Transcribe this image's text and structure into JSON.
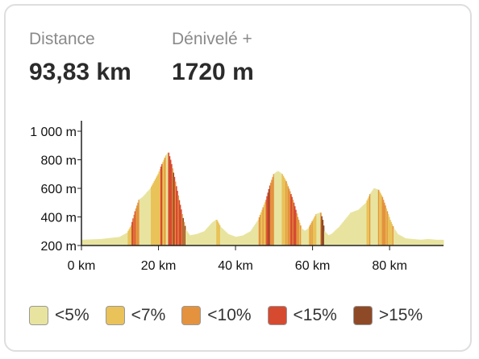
{
  "stats": {
    "distance_label": "Distance",
    "distance_value": "93,83 km",
    "elevation_label": "Dénivelé +",
    "elevation_value": "1720 m"
  },
  "colors": {
    "lt5": "#e8e4a0",
    "lt7": "#e9c259",
    "lt10": "#e4923e",
    "lt15": "#d64a30",
    "gt15": "#8e4a26",
    "axis": "#222222"
  },
  "legend": [
    {
      "label": "<5%",
      "color": "#e8e4a0"
    },
    {
      "label": "<7%",
      "color": "#e9c259"
    },
    {
      "label": "<10%",
      "color": "#e4923e"
    },
    {
      "label": "<15%",
      "color": "#d64a30"
    },
    {
      "label": ">15%",
      "color": "#8e4a26"
    }
  ],
  "chart_data": {
    "type": "area",
    "xlabel": "",
    "ylabel": "",
    "xlim": [
      0,
      94
    ],
    "ylim": [
      200,
      1000
    ],
    "x_ticks": [
      0,
      20,
      40,
      60,
      80
    ],
    "x_tick_labels": [
      "0 km",
      "20 km",
      "40 km",
      "60 km",
      "80 km"
    ],
    "y_ticks": [
      200,
      400,
      600,
      800,
      1000
    ],
    "y_tick_labels": [
      "200 m",
      "400 m",
      "600 m",
      "800 m",
      "1 000 m"
    ],
    "x": [
      0,
      5,
      10,
      12,
      13,
      14,
      15,
      16,
      17,
      18,
      19,
      20,
      21,
      22,
      22.5,
      23,
      24,
      25,
      26,
      27,
      28,
      30,
      32,
      34,
      35,
      36,
      38,
      40,
      42,
      44,
      46,
      48,
      49,
      50,
      51,
      52,
      53,
      54,
      55,
      56,
      57,
      58,
      59,
      60,
      61,
      62,
      62.5,
      63,
      64,
      65,
      67,
      70,
      72,
      74,
      75,
      76,
      77,
      78,
      79,
      80,
      81,
      82,
      84,
      86,
      88,
      90,
      92,
      93.8
    ],
    "y": [
      240,
      245,
      260,
      290,
      340,
      440,
      520,
      540,
      570,
      600,
      650,
      700,
      770,
      830,
      850,
      800,
      680,
      550,
      420,
      310,
      270,
      280,
      300,
      360,
      380,
      330,
      280,
      260,
      270,
      300,
      380,
      520,
      620,
      700,
      720,
      700,
      650,
      580,
      500,
      400,
      320,
      300,
      320,
      370,
      420,
      430,
      380,
      300,
      270,
      280,
      330,
      430,
      450,
      500,
      560,
      600,
      590,
      540,
      460,
      380,
      320,
      280,
      250,
      245,
      240,
      245,
      240,
      240
    ],
    "grade_categories": [
      "<5%",
      "<7%",
      "<10%",
      "<15%",
      ">15%"
    ]
  }
}
